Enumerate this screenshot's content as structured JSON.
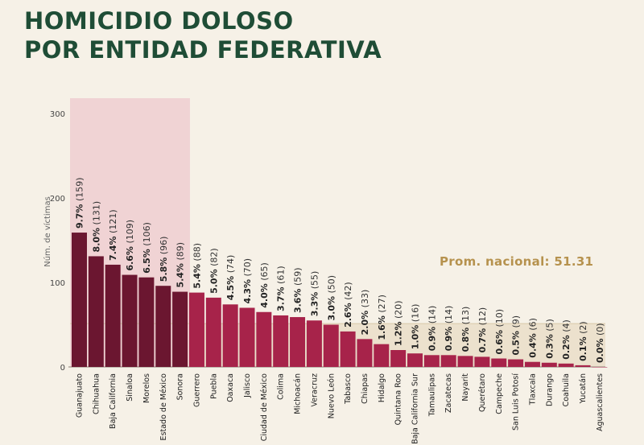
{
  "title": {
    "line1": "HOMICIDIO DOLOSO",
    "line2": "POR ENTIDAD FEDERATIVA"
  },
  "colors": {
    "title": "#1f4d36",
    "highlight_bar": "#6b1630",
    "regular_bar": "#a7234a",
    "highlight_band": "#f0d3d4",
    "average_band": "#ece1cd",
    "average_text": "#b6924e"
  },
  "chart_data": {
    "type": "bar",
    "ylabel": "Núm. de víctimas",
    "ylim": [
      0,
      300
    ],
    "yticks": [
      "0",
      "100",
      "200",
      "300"
    ],
    "average": 51.31,
    "average_label": "Prom. nacional: 51.31",
    "highlighted_count": 7,
    "categories": [
      "Guanajuato",
      "Chihuahua",
      "Baja California",
      "Sinaloa",
      "Morelos",
      "Estado de México",
      "Sonora",
      "Guerrero",
      "Puebla",
      "Oaxaca",
      "Jalisco",
      "Ciudad de México",
      "Colima",
      "Michoacán",
      "Veracruz",
      "Nuevo León",
      "Tabasco",
      "Chiapas",
      "Hidalgo",
      "Quintana Roo",
      "Baja California Sur",
      "Tamaulipas",
      "Zacatecas",
      "Nayarit",
      "Querétaro",
      "Campeche",
      "San Luis Potosí",
      "Tlaxcala",
      "Durango",
      "Coahuila",
      "Yucatán",
      "Aguascalientes"
    ],
    "values": [
      159,
      131,
      121,
      109,
      106,
      96,
      89,
      88,
      82,
      74,
      70,
      65,
      61,
      59,
      55,
      50,
      42,
      33,
      27,
      20,
      16,
      14,
      14,
      13,
      12,
      10,
      9,
      6,
      5,
      4,
      2,
      0
    ],
    "percents": [
      "9.7%",
      "8.0%",
      "7.4%",
      "6.6%",
      "6.5%",
      "5.8%",
      "5.4%",
      "5.4%",
      "5.0%",
      "4.5%",
      "4.3%",
      "4.0%",
      "3.7%",
      "3.6%",
      "3.3%",
      "3.0%",
      "2.6%",
      "2.0%",
      "1.6%",
      "1.2%",
      "1.0%",
      "0.9%",
      "0.9%",
      "0.8%",
      "0.7%",
      "0.6%",
      "0.5%",
      "0.4%",
      "0.3%",
      "0.2%",
      "0.1%",
      "0.0%"
    ],
    "counts": [
      "(159)",
      "(131)",
      "(121)",
      "(109)",
      "(106)",
      "(96)",
      "(89)",
      "(88)",
      "(82)",
      "(74)",
      "(70)",
      "(65)",
      "(61)",
      "(59)",
      "(55)",
      "(50)",
      "(42)",
      "(33)",
      "(27)",
      "(20)",
      "(16)",
      "(14)",
      "(14)",
      "(13)",
      "(12)",
      "(10)",
      "(9)",
      "(6)",
      "(5)",
      "(4)",
      "(2)",
      "(0)"
    ]
  }
}
